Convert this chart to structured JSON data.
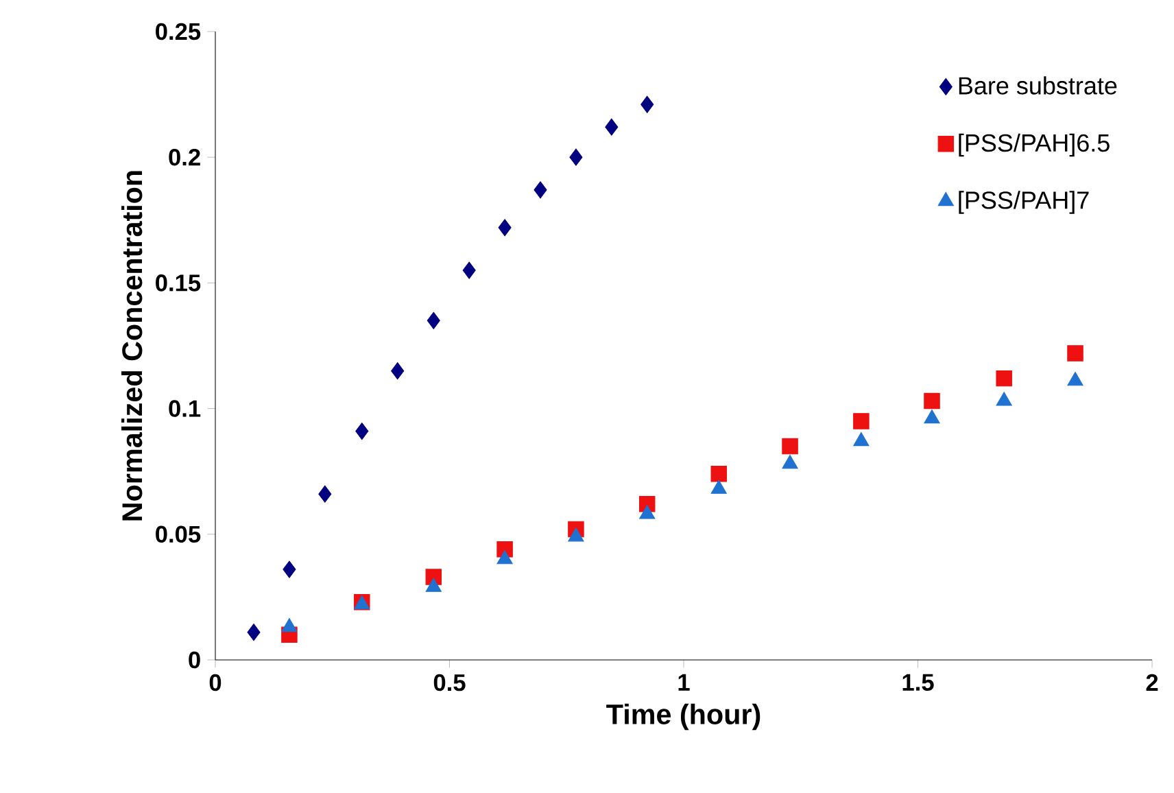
{
  "chart_data": {
    "type": "scatter",
    "xlabel": "Time (hour)",
    "ylabel": "Normalized Concentration",
    "xlim": [
      0,
      2
    ],
    "ylim": [
      0,
      0.25
    ],
    "xticks": [
      0,
      0.5,
      1,
      1.5,
      2
    ],
    "yticks": [
      0,
      0.05,
      0.1,
      0.15,
      0.2,
      0.25
    ],
    "grid": false,
    "legend": "top right",
    "series": [
      {
        "name": "Bare substrate",
        "color": "#000080",
        "marker": "diamond",
        "x": [
          0.082,
          0.158,
          0.234,
          0.313,
          0.389,
          0.466,
          0.542,
          0.618,
          0.694,
          0.77,
          0.846,
          0.922
        ],
        "values": [
          0.011,
          0.036,
          0.066,
          0.091,
          0.115,
          0.135,
          0.155,
          0.172,
          0.187,
          0.2,
          0.212,
          0.221
        ]
      },
      {
        "name": "[PSS/PAH]6.5",
        "color": "#ee1111",
        "marker": "square",
        "x": [
          0.158,
          0.313,
          0.466,
          0.618,
          0.77,
          0.922,
          1.075,
          1.227,
          1.379,
          1.53,
          1.684,
          1.836
        ],
        "values": [
          0.01,
          0.023,
          0.033,
          0.044,
          0.052,
          0.062,
          0.074,
          0.085,
          0.095,
          0.103,
          0.112,
          0.122
        ]
      },
      {
        "name": "[PSS/PAH]7",
        "color": "#1f72d0",
        "marker": "triangle",
        "x": [
          0.158,
          0.313,
          0.466,
          0.618,
          0.77,
          0.922,
          1.075,
          1.227,
          1.379,
          1.53,
          1.684,
          1.836
        ],
        "values": [
          0.013,
          0.022,
          0.029,
          0.04,
          0.049,
          0.058,
          0.068,
          0.078,
          0.087,
          0.096,
          0.103,
          0.111
        ]
      }
    ]
  }
}
